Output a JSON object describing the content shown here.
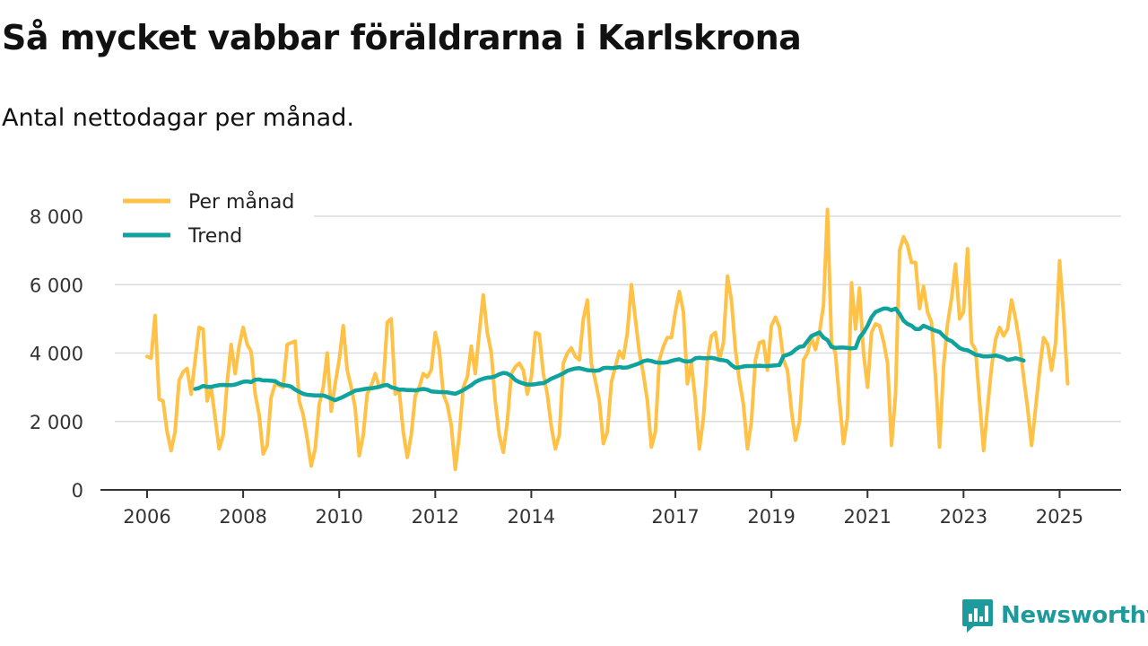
{
  "title": "Så mycket vabbar föräldrarna i Karlskrona",
  "subtitle": "Antal nettodagar per månad.",
  "brand": "Newsworthy",
  "colors": {
    "monthly": "#ffc246",
    "trend": "#10a29c",
    "grid": "#dcdcdc",
    "axis": "#333333",
    "brand": "#1d9a9c"
  },
  "chart_data": {
    "type": "line",
    "title": "Så mycket vabbar föräldrarna i Karlskrona",
    "subtitle": "Antal nettodagar per månad.",
    "xlabel": "",
    "ylabel": "",
    "x_start": "2006-01",
    "xlim": [
      2006,
      2026.4
    ],
    "ylim": [
      0,
      8000
    ],
    "y_ticks": [
      0,
      2000,
      4000,
      6000,
      8000
    ],
    "y_tick_labels": [
      "0",
      "2 000",
      "4 000",
      "6 000",
      "8 000"
    ],
    "x_ticks": [
      2006,
      2008,
      2010,
      2012,
      2014,
      2017,
      2019,
      2021,
      2023,
      2025
    ],
    "x_tick_labels": [
      "2006",
      "2008",
      "2010",
      "2012",
      "2014",
      "2017",
      "2019",
      "2021",
      "2023",
      "2025"
    ],
    "legend_position": "top-left",
    "grid": true,
    "series": [
      {
        "name": "Per månad",
        "key": "monthly",
        "start_index": 0,
        "values": [
          3900,
          3850,
          5100,
          2650,
          2600,
          1700,
          1150,
          1700,
          3200,
          3450,
          3550,
          2800,
          3800,
          4750,
          4700,
          2600,
          3000,
          2100,
          1200,
          1600,
          3150,
          4250,
          3400,
          4200,
          4750,
          4250,
          4050,
          2800,
          2200,
          1050,
          1300,
          2700,
          3100,
          3050,
          3000,
          4250,
          4300,
          4350,
          2600,
          2200,
          1500,
          700,
          1200,
          2500,
          3000,
          4000,
          2300,
          3100,
          3800,
          4800,
          3500,
          3000,
          2400,
          1000,
          1600,
          2800,
          3050,
          3400,
          3000,
          3100,
          4900,
          5000,
          2800,
          2900,
          1700,
          950,
          1600,
          2750,
          3000,
          3400,
          3300,
          3500,
          4600,
          4100,
          2800,
          2500,
          1900,
          600,
          1600,
          3000,
          3300,
          4200,
          3400,
          4600,
          5700,
          4600,
          4000,
          2600,
          1600,
          1100,
          2000,
          3400,
          3600,
          3700,
          3500,
          2800,
          3300,
          4600,
          4550,
          3400,
          2800,
          1850,
          1200,
          1600,
          3700,
          4000,
          4150,
          3900,
          3800,
          5000,
          5550,
          3700,
          3200,
          2600,
          1350,
          1700,
          3150,
          3600,
          4050,
          3850,
          4600,
          6000,
          5000,
          4000,
          3400,
          2600,
          1250,
          1700,
          3800,
          4200,
          4450,
          4450,
          5200,
          5800,
          5200,
          3100,
          3700,
          2600,
          1200,
          2100,
          3800,
          4500,
          4600,
          3800,
          4300,
          6250,
          5550,
          4100,
          3200,
          2500,
          1200,
          2000,
          3800,
          4300,
          4350,
          3500,
          4800,
          5050,
          4750,
          3800,
          3500,
          2300,
          1450,
          2000,
          3800,
          4000,
          4450,
          4100,
          4600,
          5400,
          8200,
          4300,
          4000,
          2600,
          1350,
          2100,
          6050,
          4700,
          5900,
          4000,
          3000,
          4600,
          4850,
          4800,
          4350,
          3700,
          1300,
          2800,
          7000,
          7400,
          7150,
          6650,
          6650,
          5300,
          5950,
          5200,
          4900,
          3300,
          1250,
          3600,
          4850,
          5600,
          6600,
          5000,
          5200,
          7050,
          4300,
          4100,
          2600,
          1150,
          2400,
          3600,
          4400,
          4750,
          4500,
          4700,
          5550,
          5000,
          4300,
          3300,
          2400,
          1300,
          2400,
          3500,
          4450,
          4250,
          3500,
          4300,
          6700,
          5100,
          3100
        ]
      },
      {
        "name": "Trend",
        "key": "trend",
        "start_index": 12,
        "values": [
          2950,
          2980,
          3040,
          3010,
          3010,
          3040,
          3060,
          3070,
          3060,
          3060,
          3080,
          3120,
          3160,
          3170,
          3150,
          3220,
          3230,
          3200,
          3200,
          3190,
          3180,
          3100,
          3060,
          3050,
          3020,
          2930,
          2870,
          2810,
          2780,
          2770,
          2760,
          2760,
          2760,
          2720,
          2670,
          2620,
          2670,
          2720,
          2780,
          2840,
          2900,
          2920,
          2940,
          2960,
          2970,
          2990,
          3010,
          3050,
          3070,
          3000,
          2970,
          2930,
          2930,
          2920,
          2920,
          2910,
          2930,
          2950,
          2930,
          2880,
          2870,
          2860,
          2860,
          2850,
          2830,
          2810,
          2860,
          2920,
          2990,
          3060,
          3150,
          3210,
          3250,
          3280,
          3290,
          3320,
          3380,
          3420,
          3400,
          3330,
          3210,
          3150,
          3110,
          3080,
          3080,
          3090,
          3110,
          3120,
          3180,
          3250,
          3300,
          3350,
          3410,
          3480,
          3520,
          3550,
          3560,
          3530,
          3500,
          3490,
          3480,
          3500,
          3560,
          3570,
          3560,
          3570,
          3590,
          3570,
          3580,
          3620,
          3660,
          3700,
          3760,
          3790,
          3770,
          3730,
          3720,
          3720,
          3730,
          3770,
          3800,
          3820,
          3770,
          3750,
          3770,
          3850,
          3860,
          3850,
          3850,
          3860,
          3840,
          3800,
          3790,
          3760,
          3650,
          3570,
          3580,
          3610,
          3620,
          3620,
          3620,
          3630,
          3620,
          3620,
          3630,
          3640,
          3650,
          3910,
          3950,
          4000,
          4100,
          4180,
          4200,
          4350,
          4500,
          4550,
          4600,
          4450,
          4380,
          4180,
          4150,
          4160,
          4160,
          4150,
          4140,
          4150,
          4450,
          4600,
          4800,
          5050,
          5200,
          5250,
          5300,
          5300,
          5250,
          5300,
          5150,
          4950,
          4850,
          4800,
          4700,
          4700,
          4800,
          4750,
          4700,
          4650,
          4620,
          4500,
          4400,
          4350,
          4250,
          4150,
          4100,
          4080,
          4020,
          3950,
          3930,
          3900,
          3900,
          3910,
          3930,
          3900,
          3860,
          3800,
          3820,
          3850,
          3820,
          3780
        ]
      }
    ]
  }
}
